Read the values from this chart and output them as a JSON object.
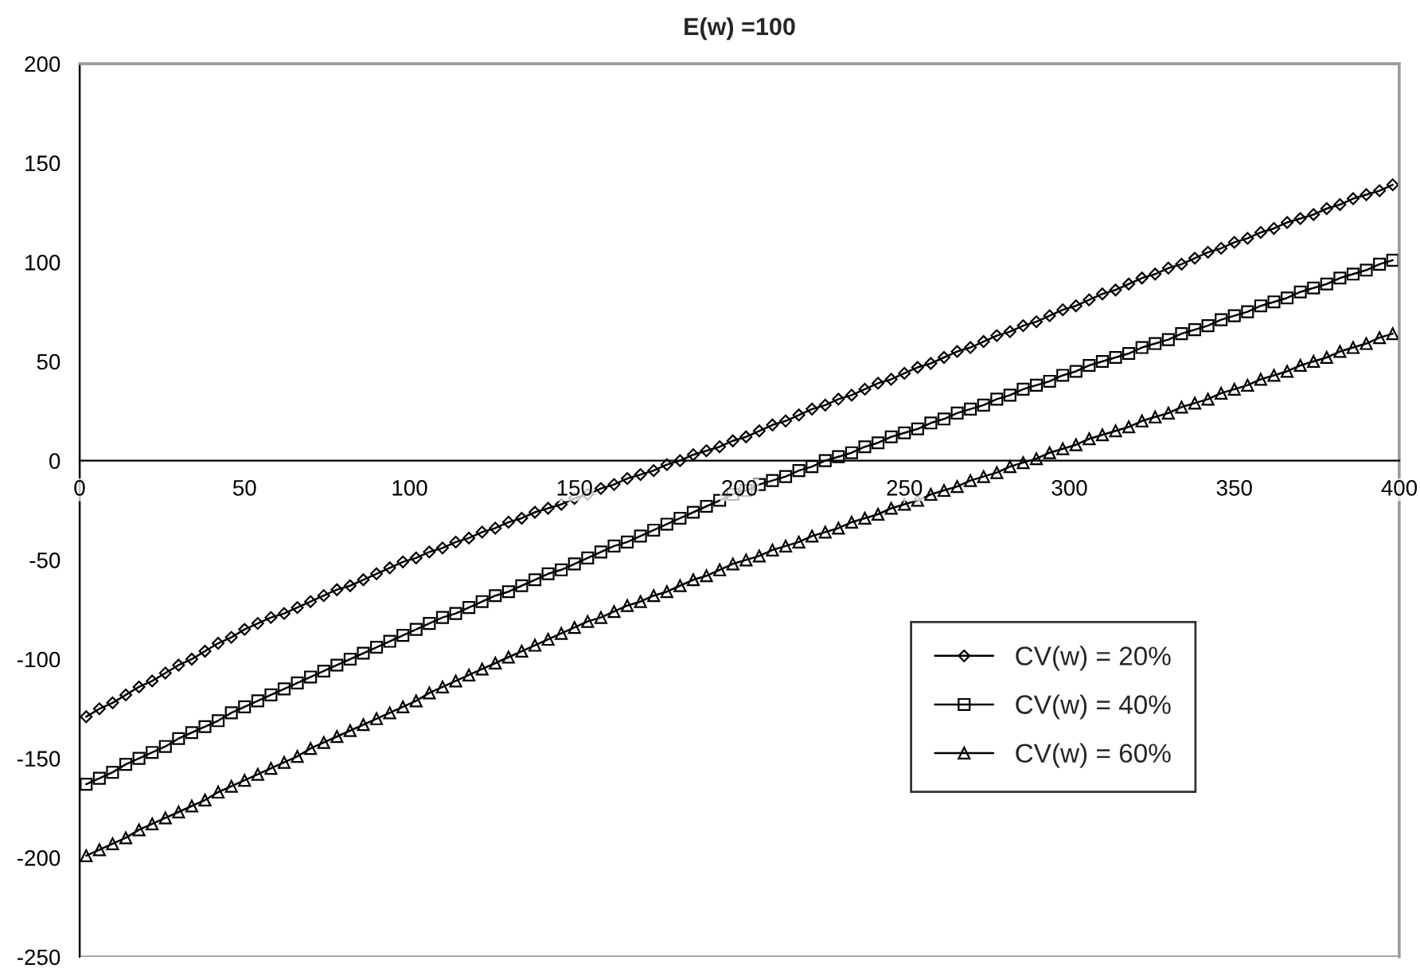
{
  "chart_data": {
    "type": "line",
    "title": "E(w) =100",
    "x": [
      2,
      6,
      10,
      14,
      18,
      22,
      26,
      30,
      34,
      38,
      42,
      46,
      50,
      54,
      58,
      62,
      66,
      70,
      74,
      78,
      82,
      86,
      90,
      94,
      98,
      102,
      106,
      110,
      114,
      118,
      122,
      126,
      130,
      134,
      138,
      142,
      146,
      150,
      154,
      158,
      162,
      166,
      170,
      174,
      178,
      182,
      186,
      190,
      194,
      198,
      202,
      206,
      210,
      214,
      218,
      222,
      226,
      230,
      234,
      238,
      242,
      246,
      250,
      254,
      258,
      262,
      266,
      270,
      274,
      278,
      282,
      286,
      290,
      294,
      298,
      302,
      306,
      310,
      314,
      318,
      322,
      326,
      330,
      334,
      338,
      342,
      346,
      350,
      354,
      358,
      362,
      366,
      370,
      374,
      378,
      382,
      386,
      390,
      394,
      398
    ],
    "series": [
      {
        "name": "CV(w) = 20%",
        "color": "#000000",
        "marker": "diamond",
        "values": [
          -129,
          -125,
          -122,
          -118,
          -114,
          -111,
          -107,
          -103,
          -100,
          -96,
          -92,
          -89,
          -85,
          -82,
          -79,
          -77,
          -74,
          -71,
          -68,
          -65,
          -63,
          -60,
          -57,
          -54,
          -51,
          -49,
          -46,
          -44,
          -41,
          -39,
          -36,
          -34,
          -31,
          -29,
          -26,
          -24,
          -22,
          -19,
          -17,
          -14,
          -12,
          -9,
          -7,
          -5,
          -2,
          0,
          3,
          5,
          7,
          10,
          12,
          15,
          18,
          20,
          23,
          26,
          28,
          31,
          33,
          36,
          39,
          41,
          44,
          47,
          49,
          52,
          55,
          57,
          60,
          63,
          65,
          68,
          70,
          73,
          76,
          78,
          81,
          84,
          86,
          89,
          92,
          94,
          97,
          99,
          102,
          105,
          107,
          110,
          112,
          115,
          117,
          120,
          122,
          124,
          127,
          129,
          132,
          134,
          136,
          139
        ]
      },
      {
        "name": "CV(w) = 40%",
        "color": "#000000",
        "marker": "square",
        "values": [
          -163,
          -160,
          -157,
          -153,
          -150,
          -147,
          -144,
          -140,
          -137,
          -134,
          -131,
          -127,
          -124,
          -121,
          -118,
          -115,
          -112,
          -109,
          -106,
          -103,
          -100,
          -97,
          -94,
          -91,
          -88,
          -85,
          -82,
          -79,
          -77,
          -74,
          -71,
          -68,
          -66,
          -63,
          -60,
          -57,
          -55,
          -52,
          -49,
          -46,
          -43,
          -41,
          -38,
          -35,
          -32,
          -29,
          -26,
          -23,
          -20,
          -17,
          -15,
          -12,
          -10,
          -8,
          -5,
          -3,
          0,
          2,
          4,
          7,
          9,
          12,
          14,
          16,
          19,
          21,
          24,
          26,
          28,
          31,
          33,
          36,
          38,
          40,
          43,
          45,
          48,
          50,
          52,
          54,
          57,
          59,
          61,
          64,
          66,
          68,
          71,
          73,
          75,
          78,
          80,
          82,
          85,
          87,
          89,
          92,
          94,
          96,
          99,
          101
        ]
      },
      {
        "name": "CV(w) = 60%",
        "color": "#000000",
        "marker": "triangle",
        "values": [
          -199,
          -196,
          -193,
          -190,
          -186,
          -183,
          -180,
          -177,
          -174,
          -171,
          -167,
          -164,
          -161,
          -158,
          -155,
          -152,
          -149,
          -145,
          -142,
          -139,
          -136,
          -133,
          -130,
          -127,
          -124,
          -121,
          -117,
          -114,
          -111,
          -108,
          -105,
          -102,
          -99,
          -96,
          -93,
          -90,
          -87,
          -84,
          -81,
          -79,
          -76,
          -73,
          -71,
          -68,
          -66,
          -63,
          -60,
          -58,
          -55,
          -52,
          -50,
          -48,
          -45,
          -43,
          -41,
          -38,
          -36,
          -34,
          -31,
          -29,
          -27,
          -24,
          -22,
          -20,
          -17,
          -15,
          -13,
          -10,
          -8,
          -6,
          -3,
          -1,
          1,
          4,
          6,
          8,
          11,
          13,
          15,
          17,
          20,
          22,
          24,
          27,
          29,
          31,
          34,
          36,
          38,
          41,
          43,
          45,
          48,
          50,
          52,
          55,
          57,
          59,
          62,
          64
        ]
      }
    ],
    "xlim": [
      0,
      400
    ],
    "xticks": [
      0,
      50,
      100,
      150,
      200,
      250,
      300,
      350,
      400
    ],
    "ylim": [
      -250,
      200
    ],
    "yticks": [
      -250,
      -200,
      -150,
      -100,
      -50,
      0,
      50,
      100,
      150,
      200
    ],
    "grid": false,
    "legend": "bottom right",
    "line_style": "solid"
  }
}
